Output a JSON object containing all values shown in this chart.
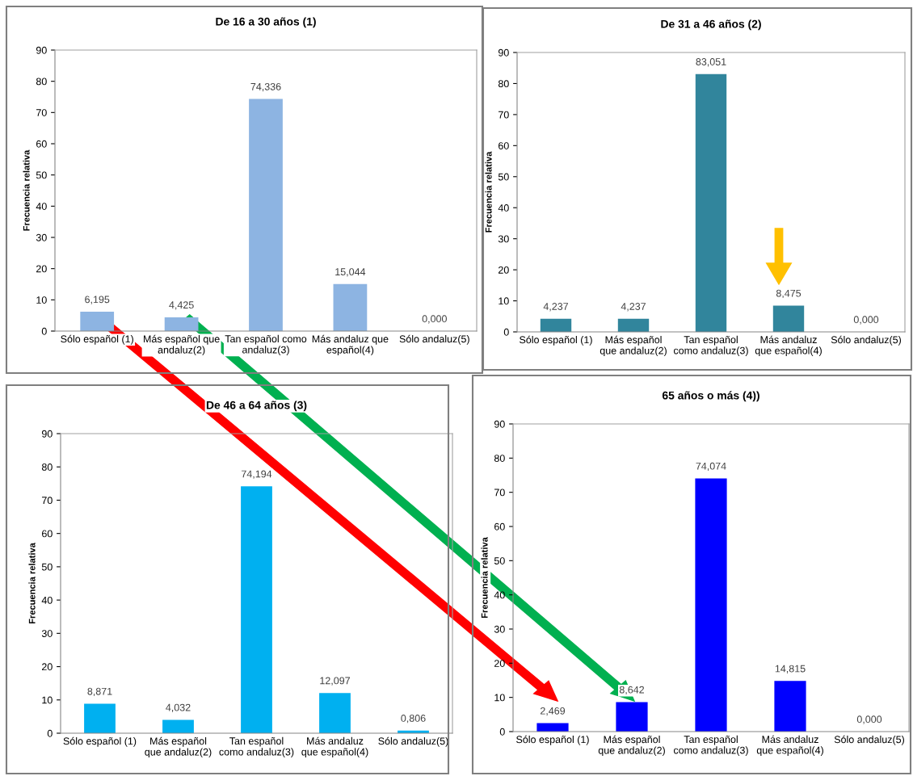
{
  "chart_data": [
    {
      "type": "bar",
      "title": "De 16 a 30 años (1)",
      "ylabel": "Frecuencia relativa",
      "categories": [
        "Sólo español (1)",
        "Más español que\nandaluz(2)",
        "Tan español como\nandaluz(3)",
        "Más andaluz que\nespañol(4)",
        "Sólo andaluz(5)"
      ],
      "values": [
        6.195,
        4.425,
        74.336,
        15.044,
        0.0
      ],
      "value_labels": [
        "6,195",
        "4,425",
        "74,336",
        "15,044",
        "0,000"
      ],
      "color": "#8db4e2",
      "ylim": [
        0,
        90
      ],
      "yticks": [
        0,
        10,
        20,
        30,
        40,
        50,
        60,
        70,
        80,
        90
      ],
      "grid": false,
      "legend": false
    },
    {
      "type": "bar",
      "title": "De 31 a 46 años (2)",
      "ylabel": "Frecuencia relativa",
      "categories": [
        "Sólo español (1)",
        "Más español\nque andaluz(2)",
        "Tan español\ncomo andaluz(3)",
        "Más andaluz\nque español(4)",
        "Sólo andaluz(5)"
      ],
      "values": [
        4.237,
        4.237,
        83.051,
        8.475,
        0.0
      ],
      "value_labels": [
        "4,237",
        "4,237",
        "83,051",
        "8,475",
        "0,000"
      ],
      "color": "#31859c",
      "ylim": [
        0,
        90
      ],
      "yticks": [
        0,
        10,
        20,
        30,
        40,
        50,
        60,
        70,
        80,
        90
      ],
      "grid": false,
      "legend": false
    },
    {
      "type": "bar",
      "title": "De 46 a 64 años (3)",
      "ylabel": "Frecuencia relativa",
      "categories": [
        "Sólo español (1)",
        "Más español\nque andaluz(2)",
        "Tan español\ncomo andaluz(3)",
        "Más andaluz\nque español(4)",
        "Sólo andaluz(5)"
      ],
      "values": [
        8.871,
        4.032,
        74.194,
        12.097,
        0.806
      ],
      "value_labels": [
        "8,871",
        "4,032",
        "74,194",
        "12,097",
        "0,806"
      ],
      "color": "#00b0f0",
      "ylim": [
        0,
        90
      ],
      "yticks": [
        0,
        10,
        20,
        30,
        40,
        50,
        60,
        70,
        80,
        90
      ],
      "grid": false,
      "legend": false
    },
    {
      "type": "bar",
      "title": "65 años o más (4))",
      "ylabel": "Frecuencia relativa",
      "categories": [
        "Sólo español (1)",
        "Más español\nque andaluz(2)",
        "Tan español\ncomo andaluz(3)",
        "Más andaluz\nque español(4)",
        "Sólo andaluz(5)"
      ],
      "values": [
        2.469,
        8.642,
        74.074,
        14.815,
        0.0
      ],
      "value_labels": [
        "2,469",
        "8,642",
        "74,074",
        "14,815",
        "0,000"
      ],
      "color": "#0000ff",
      "ylim": [
        0,
        90
      ],
      "yticks": [
        0,
        10,
        20,
        30,
        40,
        50,
        60,
        70,
        80,
        90
      ],
      "grid": false,
      "legend": false
    }
  ]
}
